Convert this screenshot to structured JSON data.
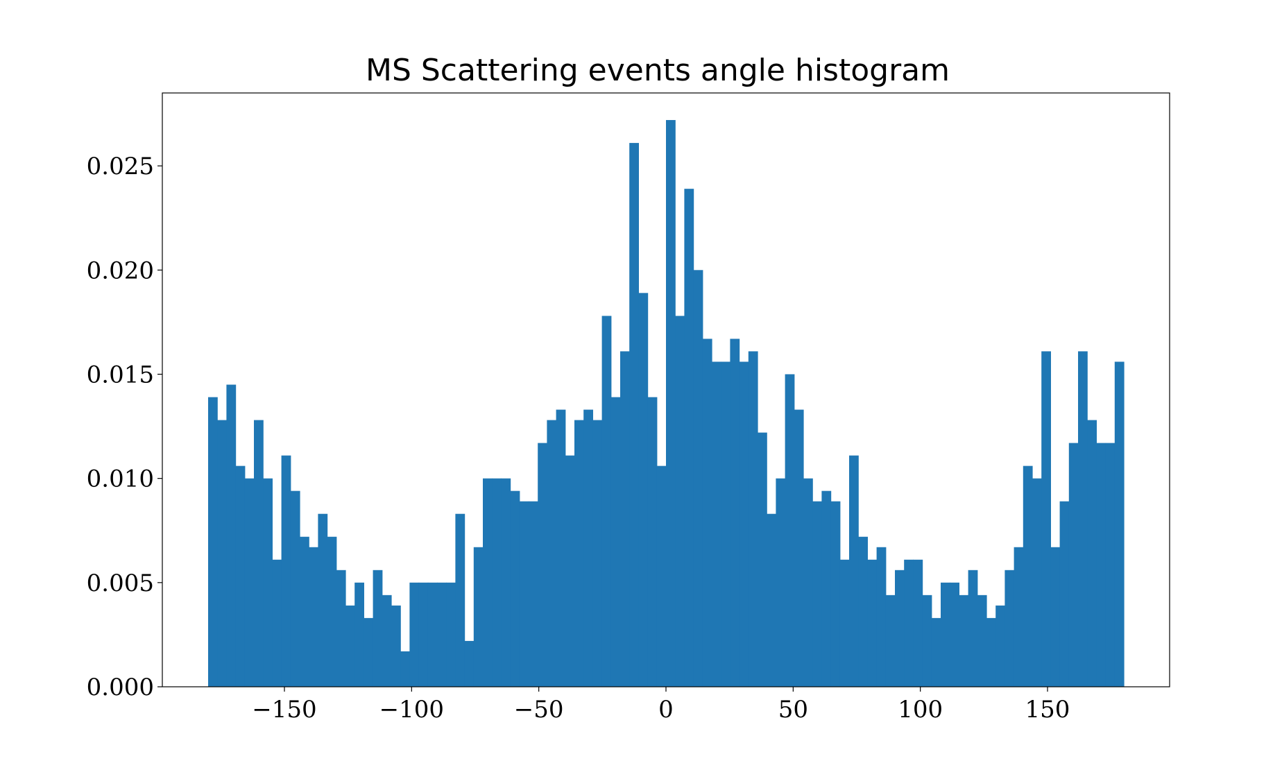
{
  "chart_data": {
    "type": "bar",
    "title": "MS Scattering events angle histogram",
    "xlabel": "",
    "ylabel": "",
    "xlim": [
      -198,
      198
    ],
    "ylim": [
      0,
      0.0285
    ],
    "grid": false,
    "bar_color": "#1f77b4",
    "bin_range": [
      -180,
      180
    ],
    "bin_width": 3.6,
    "x_ticks": [
      -150,
      -100,
      -50,
      0,
      50,
      100,
      150
    ],
    "x_tick_labels": [
      "−150",
      "−100",
      "−50",
      "0",
      "50",
      "100",
      "150"
    ],
    "y_ticks": [
      0,
      0.005,
      0.01,
      0.015,
      0.02,
      0.025
    ],
    "y_tick_labels": [
      "0.000",
      "0.005",
      "0.010",
      "0.015",
      "0.020",
      "0.025"
    ],
    "values": [
      0.0139,
      0.0128,
      0.0145,
      0.0106,
      0.01,
      0.0128,
      0.01,
      0.0061,
      0.0111,
      0.0094,
      0.0072,
      0.0067,
      0.0083,
      0.0072,
      0.0056,
      0.0039,
      0.005,
      0.0033,
      0.0056,
      0.0044,
      0.0039,
      0.0017,
      0.005,
      0.005,
      0.005,
      0.005,
      0.005,
      0.0083,
      0.0022,
      0.0067,
      0.01,
      0.01,
      0.01,
      0.0094,
      0.0089,
      0.0089,
      0.0117,
      0.0128,
      0.0133,
      0.0111,
      0.0128,
      0.0133,
      0.0128,
      0.0178,
      0.0139,
      0.0161,
      0.0261,
      0.0189,
      0.0139,
      0.0106,
      0.0272,
      0.0178,
      0.0239,
      0.02,
      0.0167,
      0.0156,
      0.0156,
      0.0167,
      0.0156,
      0.0161,
      0.0122,
      0.0083,
      0.01,
      0.015,
      0.0133,
      0.01,
      0.0089,
      0.0094,
      0.0089,
      0.0061,
      0.0111,
      0.0072,
      0.0061,
      0.0067,
      0.0044,
      0.0056,
      0.0061,
      0.0061,
      0.0044,
      0.0033,
      0.005,
      0.005,
      0.0044,
      0.0056,
      0.0044,
      0.0033,
      0.0039,
      0.0056,
      0.0067,
      0.0106,
      0.01,
      0.0161,
      0.0067,
      0.0089,
      0.0117,
      0.0161,
      0.0128,
      0.0117,
      0.0117,
      0.0156
    ]
  }
}
